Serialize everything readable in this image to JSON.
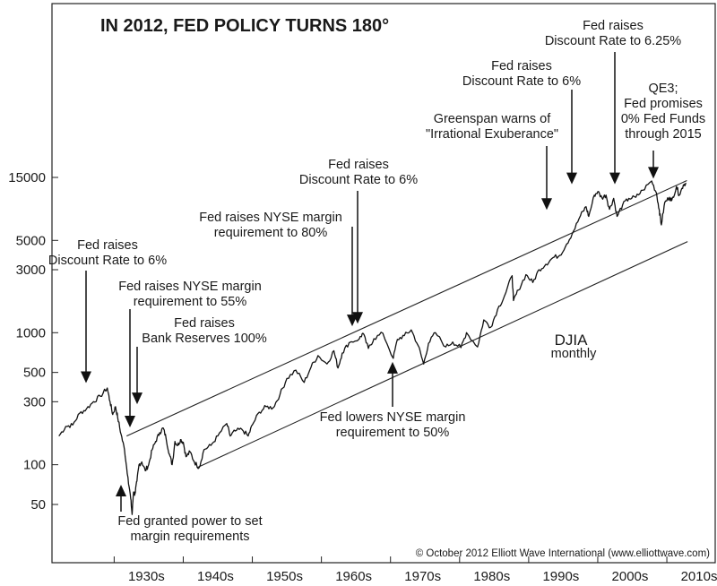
{
  "chart_data": {
    "type": "line",
    "title": "IN 2012, FED POLICY TURNS 180°",
    "series_label": "DJIA",
    "series_sublabel": "monthly",
    "copyright": "© October 2012 Elliott Wave International (www.elliottwave.com)",
    "y_scale": "log",
    "ylim": [
      35,
      40000
    ],
    "xlim": [
      1921,
      2017
    ],
    "y_ticks": [
      {
        "value": 50,
        "label": "50"
      },
      {
        "value": 100,
        "label": "100"
      },
      {
        "value": 300,
        "label": "300"
      },
      {
        "value": 500,
        "label": "500"
      },
      {
        "value": 1000,
        "label": "1000"
      },
      {
        "value": 3000,
        "label": "3000"
      },
      {
        "value": 5000,
        "label": "5000"
      },
      {
        "value": 15000,
        "label": "15000"
      }
    ],
    "x_ticks": [
      {
        "value": 1930,
        "label": "1930s"
      },
      {
        "value": 1940,
        "label": "1940s"
      },
      {
        "value": 1950,
        "label": "1950s"
      },
      {
        "value": 1960,
        "label": "1960s"
      },
      {
        "value": 1970,
        "label": "1970s"
      },
      {
        "value": 1980,
        "label": "1980s"
      },
      {
        "value": 1990,
        "label": "1990s"
      },
      {
        "value": 2000,
        "label": "2000s"
      },
      {
        "value": 2010,
        "label": "2010s"
      }
    ],
    "djia": [
      [
        1922.0,
        165
      ],
      [
        1923.0,
        195
      ],
      [
        1924.0,
        200
      ],
      [
        1925.0,
        245
      ],
      [
        1926.0,
        265
      ],
      [
        1927.0,
        300
      ],
      [
        1928.0,
        330
      ],
      [
        1929.0,
        381
      ],
      [
        1929.4,
        300
      ],
      [
        1929.8,
        240
      ],
      [
        1930.2,
        275
      ],
      [
        1930.5,
        230
      ],
      [
        1931.0,
        170
      ],
      [
        1931.5,
        130
      ],
      [
        1932.0,
        80
      ],
      [
        1932.4,
        55
      ],
      [
        1932.6,
        42
      ],
      [
        1932.8,
        62
      ],
      [
        1933.0,
        60
      ],
      [
        1933.3,
        75
      ],
      [
        1933.6,
        100
      ],
      [
        1934.0,
        105
      ],
      [
        1934.5,
        90
      ],
      [
        1935.0,
        100
      ],
      [
        1935.5,
        130
      ],
      [
        1936.0,
        150
      ],
      [
        1936.6,
        175
      ],
      [
        1937.1,
        190
      ],
      [
        1937.5,
        160
      ],
      [
        1938.0,
        120
      ],
      [
        1938.4,
        100
      ],
      [
        1938.8,
        150
      ],
      [
        1939.2,
        140
      ],
      [
        1939.6,
        155
      ],
      [
        1940.0,
        148
      ],
      [
        1940.4,
        115
      ],
      [
        1941.0,
        125
      ],
      [
        1941.6,
        105
      ],
      [
        1942.3,
        95
      ],
      [
        1943.0,
        130
      ],
      [
        1944.0,
        140
      ],
      [
        1945.0,
        165
      ],
      [
        1946.3,
        205
      ],
      [
        1946.8,
        165
      ],
      [
        1947.5,
        180
      ],
      [
        1948.5,
        185
      ],
      [
        1949.4,
        165
      ],
      [
        1950.0,
        200
      ],
      [
        1951.0,
        250
      ],
      [
        1952.0,
        275
      ],
      [
        1953.0,
        270
      ],
      [
        1954.0,
        340
      ],
      [
        1955.0,
        450
      ],
      [
        1956.3,
        520
      ],
      [
        1957.5,
        420
      ],
      [
        1958.5,
        550
      ],
      [
        1959.5,
        670
      ],
      [
        1960.8,
        580
      ],
      [
        1961.8,
        730
      ],
      [
        1962.4,
        540
      ],
      [
        1963.0,
        700
      ],
      [
        1964.0,
        840
      ],
      [
        1965.5,
        900
      ],
      [
        1966.0,
        990
      ],
      [
        1966.8,
        760
      ],
      [
        1967.6,
        900
      ],
      [
        1968.9,
        990
      ],
      [
        1970.4,
        640
      ],
      [
        1971.0,
        890
      ],
      [
        1972.0,
        950
      ],
      [
        1973.0,
        1050
      ],
      [
        1974.0,
        800
      ],
      [
        1974.8,
        580
      ],
      [
        1975.5,
        830
      ],
      [
        1976.5,
        1000
      ],
      [
        1978.0,
        780
      ],
      [
        1979.0,
        850
      ],
      [
        1980.2,
        770
      ],
      [
        1981.0,
        1000
      ],
      [
        1982.6,
        780
      ],
      [
        1983.5,
        1250
      ],
      [
        1984.5,
        1100
      ],
      [
        1985.5,
        1500
      ],
      [
        1986.5,
        1900
      ],
      [
        1987.6,
        2700
      ],
      [
        1987.8,
        1750
      ],
      [
        1988.5,
        2100
      ],
      [
        1989.6,
        2750
      ],
      [
        1990.6,
        2400
      ],
      [
        1991.5,
        3000
      ],
      [
        1992.5,
        3300
      ],
      [
        1993.5,
        3700
      ],
      [
        1994.5,
        3850
      ],
      [
        1995.5,
        4700
      ],
      [
        1996.5,
        5900
      ],
      [
        1997.5,
        7700
      ],
      [
        1998.3,
        9000
      ],
      [
        1998.7,
        7600
      ],
      [
        1999.5,
        11000
      ],
      [
        2000.0,
        11700
      ],
      [
        2000.6,
        10500
      ],
      [
        2001.2,
        11000
      ],
      [
        2001.7,
        8600
      ],
      [
        2002.3,
        10400
      ],
      [
        2002.8,
        7600
      ],
      [
        2003.6,
        9300
      ],
      [
        2004.5,
        10400
      ],
      [
        2005.5,
        10600
      ],
      [
        2006.5,
        12000
      ],
      [
        2007.8,
        14100
      ],
      [
        2008.5,
        11400
      ],
      [
        2008.9,
        8500
      ],
      [
        2009.2,
        6550
      ],
      [
        2009.7,
        9700
      ],
      [
        2010.4,
        10600
      ],
      [
        2010.7,
        10000
      ],
      [
        2011.4,
        12800
      ],
      [
        2011.8,
        11000
      ],
      [
        2012.4,
        13200
      ],
      [
        2012.8,
        13600
      ]
    ],
    "channel": {
      "upper": [
        [
          1931.8,
          165
        ],
        [
          2012.9,
          14200
        ]
      ],
      "lower": [
        [
          1942.0,
          95
        ],
        [
          2013.0,
          4900
        ]
      ]
    },
    "annotations": [
      {
        "lines": [
          "Fed raises",
          "Discount Rate to 6%"
        ],
        "arrow_x": 1929.0,
        "arrow_y": 390,
        "direction": "down"
      },
      {
        "lines": [
          "Fed raises NYSE margin",
          "requirement to 55%"
        ],
        "arrow_x": 1935.6,
        "arrow_y": 180,
        "direction": "down"
      },
      {
        "lines": [
          "Fed raises",
          "Bank Reserves 100%"
        ],
        "arrow_x": 1936.3,
        "arrow_y": 270,
        "direction": "down"
      },
      {
        "lines": [
          "Fed granted power to set",
          "margin requirements"
        ],
        "arrow_x": 1934.0,
        "arrow_y": 75,
        "direction": "up"
      },
      {
        "lines": [
          "Fed raises NYSE margin",
          "requirement to 80%"
        ],
        "arrow_x": 1966.7,
        "arrow_y": 1050,
        "direction": "down"
      },
      {
        "lines": [
          "Fed raises",
          "Discount Rate to 6%"
        ],
        "arrow_x": 1967.6,
        "arrow_y": 1100,
        "direction": "down"
      },
      {
        "lines": [
          "Fed lowers NYSE margin",
          "requirement to 50%"
        ],
        "arrow_x": 1970.4,
        "arrow_y": 640,
        "direction": "up"
      },
      {
        "lines": [
          "Greenspan warns of",
          "\"Irrational Exuberance\""
        ],
        "arrow_x": 1996.5,
        "arrow_y": 8000,
        "direction": "down"
      },
      {
        "lines": [
          "Fed raises",
          "Discount Rate to 6%"
        ],
        "arrow_x": 2000.0,
        "arrow_y": 12500,
        "direction": "down"
      },
      {
        "lines": [
          "Fed raises",
          "Discount Rate to 6.25%"
        ],
        "arrow_x": 2006.5,
        "arrow_y": 12500,
        "direction": "down"
      },
      {
        "lines": [
          "QE3;",
          "Fed promises",
          "0% Fed Funds",
          "through 2015"
        ],
        "arrow_x": 2012.5,
        "arrow_y": 13800,
        "direction": "down"
      }
    ],
    "grid": false,
    "legend": "none"
  }
}
